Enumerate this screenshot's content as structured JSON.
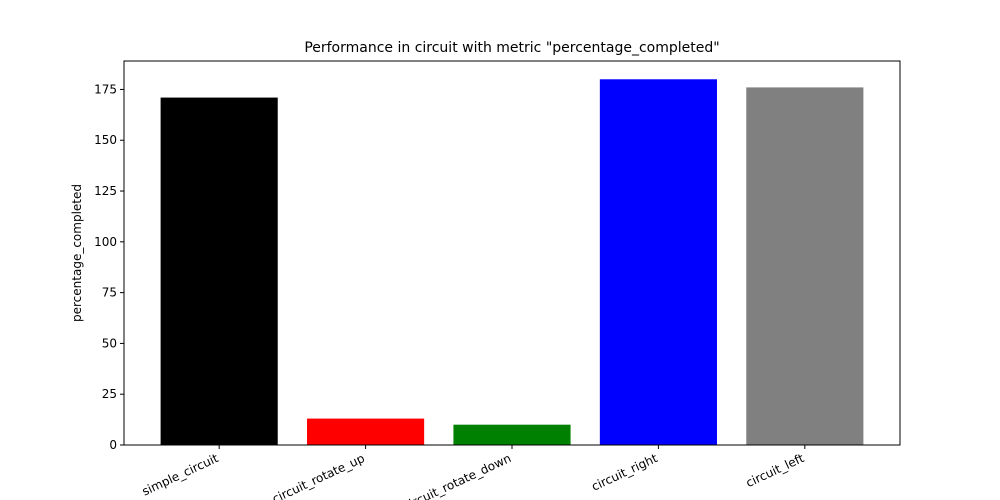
{
  "chart_data": {
    "type": "bar",
    "title": "Performance in circuit with metric \"percentage_completed\"",
    "y_label": "percentage_completed",
    "categories": [
      "simple_circuit",
      "circuit_rotate_up",
      "circuit_rotate_down",
      "circuit_right",
      "circuit_left"
    ],
    "values": [
      171,
      13,
      10,
      180,
      176
    ],
    "colors": [
      "#000000",
      "#ff0000",
      "#008000",
      "#0000ff",
      "#808080"
    ],
    "ylim": [
      0,
      189
    ],
    "yticks": [
      0,
      25,
      50,
      75,
      100,
      125,
      150,
      175
    ]
  }
}
